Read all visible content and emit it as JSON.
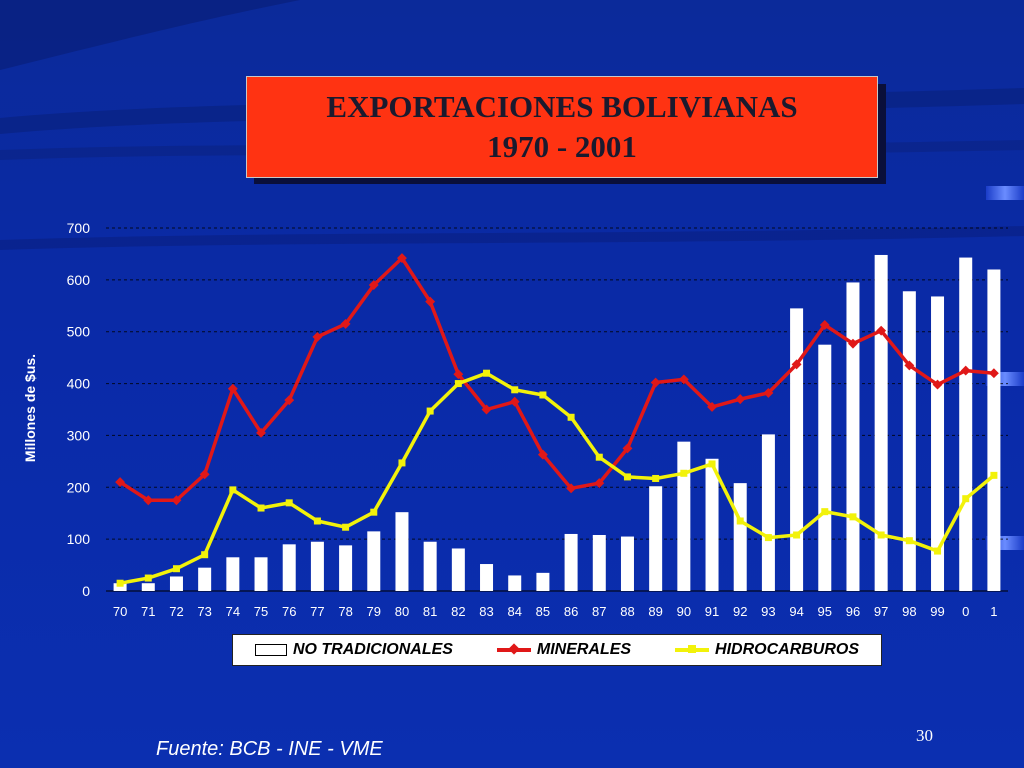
{
  "slide": {
    "title_line1": "EXPORTACIONES BOLIVIANAS",
    "title_line2": "1970 - 2001",
    "footer": "Fuente: BCB - INE - VME",
    "page_number": "30"
  },
  "colors": {
    "background": "#0a2aa8",
    "title_box": "#ff3312",
    "bars": "#ffffff",
    "minerales": "#e01818",
    "hidrocarburos": "#f2f20a"
  },
  "chart_data": {
    "type": "bar",
    "ylabel": "Millones de $us.",
    "ylim": [
      0,
      700
    ],
    "yticks": [
      0,
      100,
      200,
      300,
      400,
      500,
      600,
      700
    ],
    "grid": true,
    "legend_position": "bottom",
    "categories": [
      "70",
      "71",
      "72",
      "73",
      "74",
      "75",
      "76",
      "77",
      "78",
      "79",
      "80",
      "81",
      "82",
      "83",
      "84",
      "85",
      "86",
      "87",
      "88",
      "89",
      "90",
      "91",
      "92",
      "93",
      "94",
      "95",
      "96",
      "97",
      "98",
      "99",
      "0",
      "1"
    ],
    "series": [
      {
        "name": "NO TRADICIONALES",
        "kind": "bar",
        "color": "#ffffff",
        "values": [
          15,
          15,
          28,
          45,
          65,
          65,
          90,
          95,
          88,
          115,
          152,
          95,
          82,
          52,
          30,
          35,
          110,
          108,
          105,
          202,
          288,
          255,
          208,
          302,
          545,
          475,
          595,
          648,
          578,
          568,
          643,
          620
        ]
      },
      {
        "name": "MINERALES",
        "kind": "line",
        "color": "#e01818",
        "values": [
          210,
          175,
          175,
          225,
          390,
          305,
          368,
          490,
          515,
          590,
          642,
          558,
          418,
          350,
          365,
          263,
          198,
          208,
          275,
          402,
          408,
          355,
          370,
          382,
          437,
          513,
          477,
          502,
          435,
          398,
          425,
          420
        ]
      },
      {
        "name": "HIDROCARBUROS",
        "kind": "line",
        "color": "#f2f20a",
        "values": [
          15,
          25,
          43,
          70,
          195,
          160,
          170,
          135,
          123,
          152,
          247,
          347,
          400,
          420,
          388,
          378,
          335,
          258,
          220,
          217,
          227,
          245,
          135,
          103,
          108,
          153,
          143,
          108,
          97,
          77,
          178,
          223
        ]
      }
    ]
  }
}
